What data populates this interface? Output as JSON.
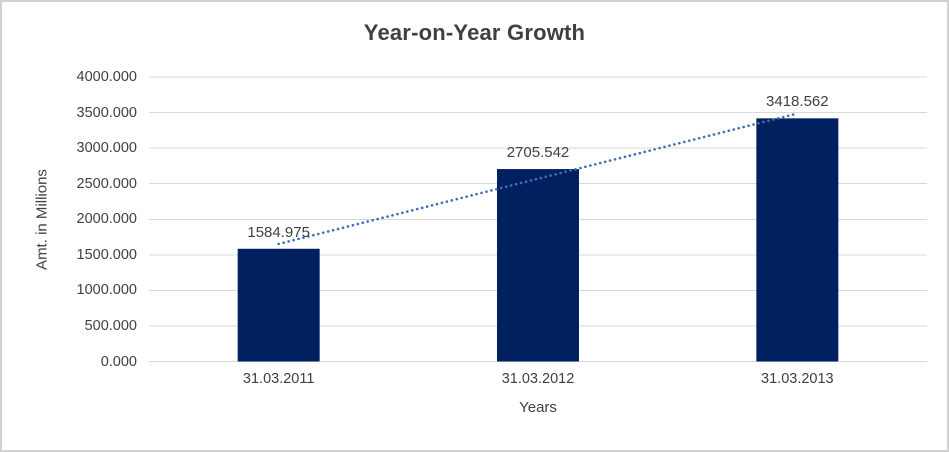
{
  "chart_data": {
    "type": "bar",
    "title": "Year-on-Year Growth",
    "xlabel": "Years",
    "ylabel": "Amt. in Millions",
    "categories": [
      "31.03.2011",
      "31.03.2012",
      "31.03.2013"
    ],
    "values": [
      1584.975,
      2705.542,
      3418.562
    ],
    "data_labels": [
      "1584.975",
      "2705.542",
      "3418.562"
    ],
    "ylim": [
      0,
      4000
    ],
    "ytick_step": 500,
    "ytick_labels": [
      "0.000",
      "500.000",
      "1000.000",
      "1500.000",
      "2000.000",
      "2500.000",
      "3000.000",
      "3500.000",
      "4000.000"
    ],
    "grid": "horizontal",
    "legend": "none",
    "trendline": {
      "type": "linear",
      "style": "dotted"
    },
    "colors": {
      "bar": "#002060",
      "trendline": "#3e6fb5",
      "gridline": "#d9d9d9",
      "axis_line": "#d9d9d9",
      "text": "#404040",
      "background": "#ffffff",
      "frame_border": "#d2d2d2"
    }
  }
}
